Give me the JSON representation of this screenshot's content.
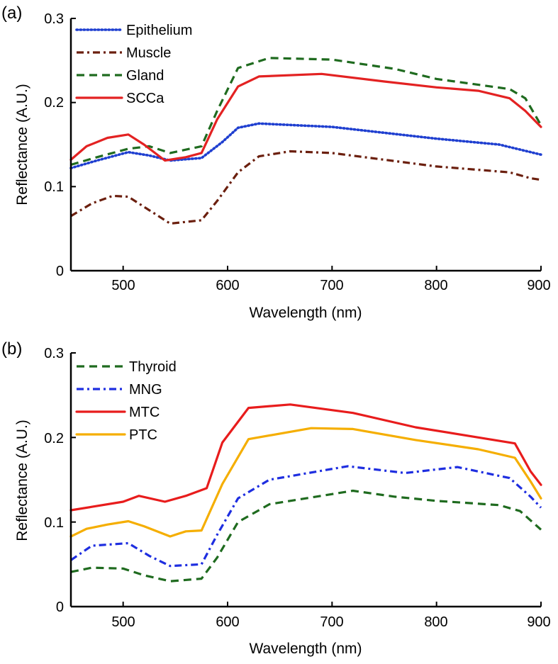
{
  "chart_data": [
    {
      "type": "line",
      "panel_label": "(a)",
      "xlabel": "Wavelength (nm)",
      "ylabel": "Reflectance (A.U.)",
      "xlim": [
        450,
        900
      ],
      "ylim": [
        0,
        0.3
      ],
      "xticks": [
        500,
        600,
        700,
        800,
        900
      ],
      "xtick_labels": [
        "500",
        "600",
        "700",
        "800",
        "900"
      ],
      "yticks": [
        0,
        0.1,
        0.2,
        0.3
      ],
      "ytick_labels": [
        "0",
        "0.1",
        "0.2",
        "0.3"
      ],
      "legend_position": "top-left",
      "series": [
        {
          "name": "Epithelium",
          "color": "#1f3fd0",
          "dash": "dotted",
          "x": [
            450,
            475,
            505,
            525,
            545,
            575,
            595,
            610,
            630,
            700,
            750,
            800,
            860,
            900
          ],
          "y": [
            0.122,
            0.131,
            0.141,
            0.137,
            0.131,
            0.134,
            0.153,
            0.17,
            0.175,
            0.171,
            0.164,
            0.157,
            0.15,
            0.138
          ]
        },
        {
          "name": "Muscle",
          "color": "#6b1f0e",
          "dash": "dashdot",
          "x": [
            450,
            470,
            490,
            505,
            525,
            545,
            575,
            590,
            610,
            630,
            660,
            700,
            750,
            800,
            870,
            890,
            900
          ],
          "y": [
            0.065,
            0.08,
            0.089,
            0.088,
            0.072,
            0.056,
            0.06,
            0.083,
            0.117,
            0.136,
            0.142,
            0.14,
            0.132,
            0.124,
            0.117,
            0.11,
            0.108
          ]
        },
        {
          "name": "Gland",
          "color": "#1f6b1f",
          "dash": "dashed",
          "x": [
            450,
            475,
            505,
            525,
            545,
            575,
            590,
            610,
            640,
            700,
            760,
            800,
            870,
            885,
            900
          ],
          "y": [
            0.126,
            0.135,
            0.145,
            0.148,
            0.14,
            0.148,
            0.19,
            0.241,
            0.253,
            0.251,
            0.24,
            0.228,
            0.216,
            0.205,
            0.173
          ]
        },
        {
          "name": "SCCa",
          "color": "#e32222",
          "dash": "solid",
          "x": [
            450,
            465,
            485,
            505,
            520,
            540,
            560,
            575,
            590,
            610,
            630,
            690,
            750,
            800,
            840,
            870,
            885,
            900
          ],
          "y": [
            0.132,
            0.148,
            0.158,
            0.162,
            0.15,
            0.131,
            0.135,
            0.14,
            0.18,
            0.219,
            0.231,
            0.234,
            0.225,
            0.218,
            0.214,
            0.205,
            0.19,
            0.171
          ]
        }
      ]
    },
    {
      "type": "line",
      "panel_label": "(b)",
      "xlabel": "Wavelength (nm)",
      "ylabel": "Reflectance (A.U.)",
      "xlim": [
        450,
        900
      ],
      "ylim": [
        0,
        0.3
      ],
      "xticks": [
        500,
        600,
        700,
        800,
        900
      ],
      "xtick_labels": [
        "500",
        "600",
        "700",
        "800",
        "900"
      ],
      "yticks": [
        0,
        0.1,
        0.2,
        0.3
      ],
      "ytick_labels": [
        "0",
        "0.1",
        "0.2",
        "0.3"
      ],
      "legend_position": "top-left",
      "series": [
        {
          "name": "Thyroid",
          "color": "#1f6b1f",
          "dash": "dashed",
          "x": [
            450,
            470,
            500,
            520,
            545,
            575,
            590,
            610,
            640,
            720,
            760,
            800,
            860,
            880,
            900
          ],
          "y": [
            0.041,
            0.046,
            0.045,
            0.037,
            0.03,
            0.033,
            0.058,
            0.1,
            0.121,
            0.137,
            0.13,
            0.125,
            0.12,
            0.113,
            0.091
          ]
        },
        {
          "name": "MNG",
          "color": "#1e2ee0",
          "dash": "dashdot",
          "x": [
            450,
            470,
            505,
            525,
            545,
            575,
            590,
            610,
            640,
            715,
            770,
            820,
            870,
            890,
            900
          ],
          "y": [
            0.055,
            0.072,
            0.075,
            0.06,
            0.048,
            0.05,
            0.085,
            0.128,
            0.15,
            0.166,
            0.158,
            0.165,
            0.152,
            0.13,
            0.117
          ]
        },
        {
          "name": "MTC",
          "color": "#e81c1c",
          "dash": "solid",
          "x": [
            450,
            470,
            500,
            515,
            540,
            560,
            580,
            595,
            620,
            660,
            720,
            780,
            840,
            875,
            890,
            900
          ],
          "y": [
            0.114,
            0.118,
            0.124,
            0.131,
            0.124,
            0.131,
            0.14,
            0.194,
            0.235,
            0.239,
            0.229,
            0.212,
            0.2,
            0.193,
            0.16,
            0.144
          ]
        },
        {
          "name": "PTC",
          "color": "#f5ae00",
          "dash": "solid",
          "x": [
            450,
            465,
            485,
            505,
            520,
            545,
            560,
            575,
            595,
            620,
            680,
            720,
            780,
            840,
            875,
            890,
            900
          ],
          "y": [
            0.083,
            0.092,
            0.097,
            0.101,
            0.095,
            0.083,
            0.089,
            0.09,
            0.145,
            0.198,
            0.211,
            0.21,
            0.197,
            0.186,
            0.176,
            0.148,
            0.128
          ]
        }
      ]
    }
  ]
}
